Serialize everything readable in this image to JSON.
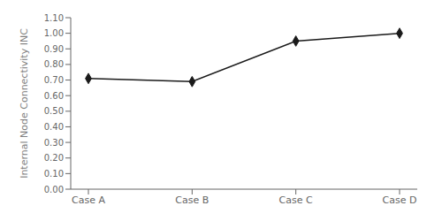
{
  "chart_data": {
    "type": "line",
    "categories": [
      "Case A",
      "Case B",
      "Case C",
      "Case D"
    ],
    "values": [
      0.71,
      0.69,
      0.95,
      1.0
    ],
    "color": "#1a1a1a",
    "marker": "diamond",
    "ylabel": "Internal Node Connectivity INC",
    "ylim": [
      0.0,
      1.1
    ],
    "yticks": [
      {
        "value": 0.0,
        "label": "0.00"
      },
      {
        "value": 0.1,
        "label": "0.10"
      },
      {
        "value": 0.2,
        "label": "0.20"
      },
      {
        "value": 0.3,
        "label": "0.30"
      },
      {
        "value": 0.4,
        "label": "0.40"
      },
      {
        "value": 0.5,
        "label": "0.50"
      },
      {
        "value": 0.6,
        "label": "0.60"
      },
      {
        "value": 0.7,
        "label": "0.70"
      },
      {
        "value": 0.8,
        "label": "0.80"
      },
      {
        "value": 0.9,
        "label": "0.90"
      },
      {
        "value": 1.0,
        "label": "1.00"
      },
      {
        "value": 1.1,
        "label": "1.10"
      }
    ],
    "grid": false
  }
}
